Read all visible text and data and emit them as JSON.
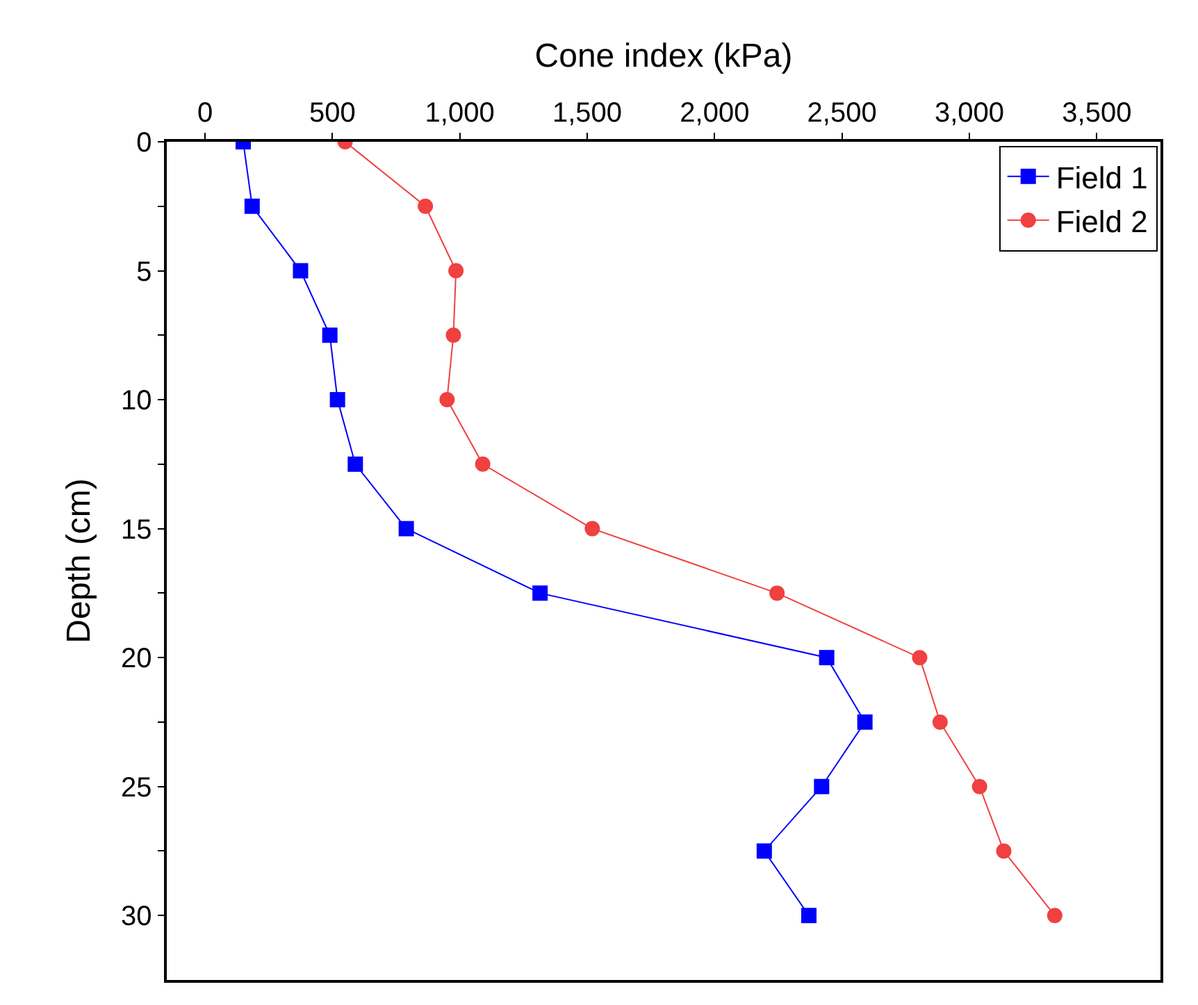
{
  "chart_data": {
    "type": "line",
    "xlabel": "Cone index (kPa)",
    "ylabel": "Depth (cm)",
    "xlim": [
      -150,
      3750
    ],
    "xticks": [
      0,
      500,
      {
        "value": 1000,
        "label": "1,000"
      },
      {
        "value": 1500,
        "label": "1,500"
      },
      {
        "value": 2000,
        "label": "2,000"
      },
      {
        "value": 2500,
        "label": "2,500"
      },
      {
        "value": 3000,
        "label": "3,000"
      },
      {
        "value": 3500,
        "label": "3,500"
      }
    ],
    "ylim": [
      32.5,
      0
    ],
    "yticks": [
      0,
      {
        "value": 2.5,
        "label": null
      },
      5,
      {
        "value": 7.5,
        "label": null
      },
      10,
      {
        "value": 12.5,
        "label": null
      },
      15,
      {
        "value": 17.5,
        "label": null
      },
      20,
      {
        "value": 22.5,
        "label": null
      },
      25,
      {
        "value": 27.5,
        "label": null
      },
      30
    ],
    "legend": "top right",
    "line_style": "solid",
    "series": [
      {
        "name": "Field 1",
        "color": "#0000ff",
        "marker": "square",
        "x": [
          150,
          185,
          375,
          490,
          520,
          590,
          790,
          1315,
          2440,
          2590,
          2420,
          2195,
          2370
        ],
        "values": [
          0,
          2.5,
          5,
          7.5,
          10,
          12.5,
          15,
          17.5,
          20,
          22.5,
          25,
          27.5,
          30
        ]
      },
      {
        "name": "Field 2",
        "color": "#f04040",
        "marker": "circle",
        "x": [
          550,
          865,
          985,
          975,
          950,
          1090,
          1520,
          2245,
          2805,
          2885,
          3040,
          3135,
          3335
        ],
        "values": [
          0,
          2.5,
          5,
          7.5,
          10,
          12.5,
          15,
          17.5,
          20,
          22.5,
          25,
          27.5,
          30
        ]
      }
    ]
  }
}
